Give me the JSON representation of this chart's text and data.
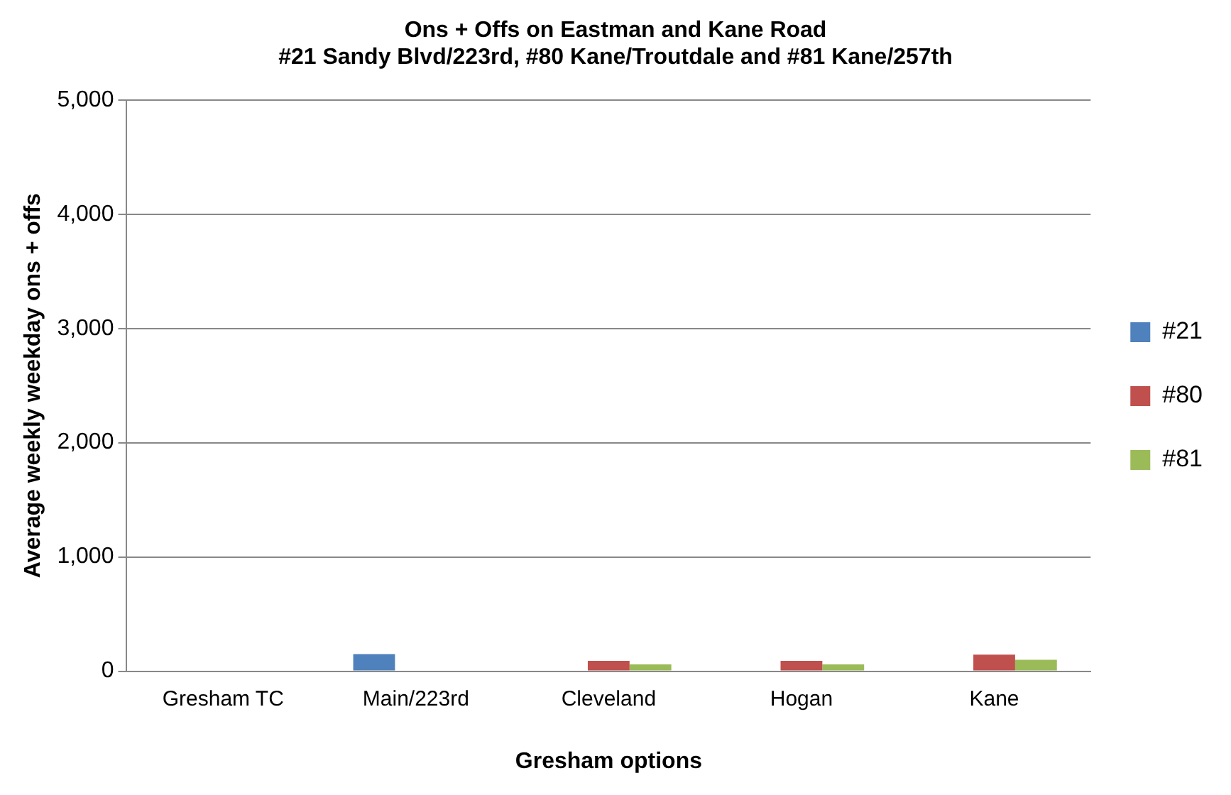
{
  "chart_data": {
    "type": "bar",
    "title": [
      "Ons + Offs on Eastman and Kane Road",
      "#21 Sandy Blvd/223rd, #80 Kane/Troutdale and #81 Kane/257th"
    ],
    "xlabel": "Gresham options",
    "ylabel": "Average weekly weekday ons + offs",
    "categories": [
      "Gresham TC",
      "Main/223rd",
      "Cleveland",
      "Hogan",
      "Kane"
    ],
    "series": [
      {
        "name": "#21",
        "color": "#4f81bd",
        "values": [
          0,
          150,
          0,
          0,
          0
        ]
      },
      {
        "name": "#80",
        "color": "#c0504d",
        "values": [
          0,
          0,
          90,
          90,
          145
        ]
      },
      {
        "name": "#81",
        "color": "#9bbb59",
        "values": [
          0,
          0,
          60,
          60,
          100
        ]
      }
    ],
    "ylim": [
      0,
      5000
    ],
    "yticks": [
      {
        "value": 0,
        "label": "0"
      },
      {
        "value": 1000,
        "label": "1,000"
      },
      {
        "value": 2000,
        "label": "2,000"
      },
      {
        "value": 3000,
        "label": "3,000"
      },
      {
        "value": 4000,
        "label": "4,000"
      },
      {
        "value": 5000,
        "label": "5,000"
      }
    ],
    "grid": "y",
    "legend": "right"
  }
}
